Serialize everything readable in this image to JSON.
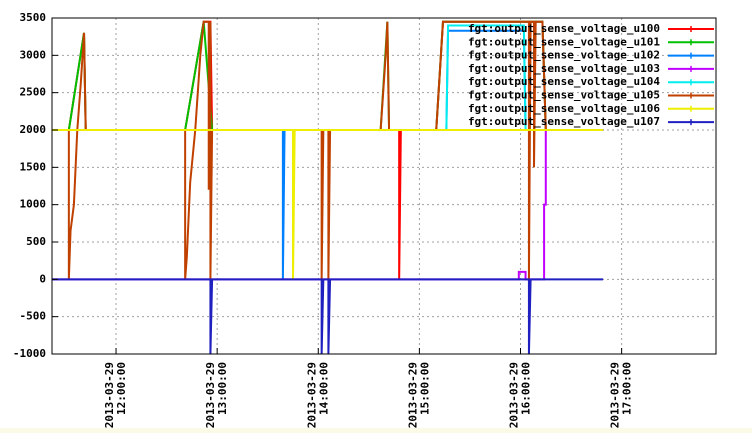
{
  "chart_data": {
    "type": "line",
    "ylim": [
      -1000,
      3500
    ],
    "yticks": [
      -1000,
      -500,
      0,
      500,
      1000,
      1500,
      2000,
      2500,
      3000,
      3500
    ],
    "xlim": [
      "2013-03-29 11:22:00",
      "2013-03-29 17:56:00"
    ],
    "xticks": [
      {
        "value": "2013-03-29 12:00:00",
        "label": "2013-03-29 12:00:00"
      },
      {
        "value": "2013-03-29 13:00:00",
        "label": "2013-03-29 13:00:00"
      },
      {
        "value": "2013-03-29 14:00:00",
        "label": "2013-03-29 14:00:00"
      },
      {
        "value": "2013-03-29 15:00:00",
        "label": "2013-03-29 15:00:00"
      },
      {
        "value": "2013-03-29 16:00:00",
        "label": "2013-03-29 16:00:00"
      },
      {
        "value": "2013-03-29 17:00:00",
        "label": "2013-03-29 17:00:00"
      }
    ],
    "grid": true,
    "legend": "top-right",
    "series": [
      {
        "name": "fgt:output_sense_voltage_u100",
        "color": "#ff0000",
        "x": [
          "2013-03-29 11:22:00",
          "2013-03-29 11:32:00",
          "2013-03-29 11:41:00",
          "2013-03-29 11:42:00",
          "2013-03-29 12:41:00",
          "2013-03-29 12:52:00",
          "2013-03-29 12:56:00",
          "2013-03-29 12:57:00",
          "2013-03-29 14:48:00",
          "2013-03-29 14:48:00",
          "2013-03-29 14:48:00",
          "2013-03-29 14:49:00",
          "2013-03-29 15:10:00",
          "2013-03-29 15:14:00",
          "2013-03-29 16:13:00",
          "2013-03-29 16:15:00",
          "2013-03-29 16:49:00"
        ],
        "values": [
          2000,
          2000,
          3300,
          2000,
          2000,
          3450,
          3450,
          2000,
          2000,
          1000,
          0,
          2000,
          2000,
          3450,
          3450,
          2000,
          2000
        ]
      },
      {
        "name": "fgt:output_sense_voltage_u101",
        "color": "#00c000",
        "x": [
          "2013-03-29 11:22:00",
          "2013-03-29 11:32:00",
          "2013-03-29 11:41:00",
          "2013-03-29 11:42:00",
          "2013-03-29 12:41:00",
          "2013-03-29 12:52:00",
          "2013-03-29 12:57:00",
          "2013-03-29 14:37:00",
          "2013-03-29 14:41:00",
          "2013-03-29 14:42:00",
          "2013-03-29 15:10:00",
          "2013-03-29 15:14:00",
          "2013-03-29 16:13:00",
          "2013-03-29 16:15:00",
          "2013-03-29 16:49:00"
        ],
        "values": [
          2000,
          2000,
          3300,
          2000,
          2000,
          3450,
          2000,
          2000,
          3450,
          2000,
          2000,
          3450,
          3450,
          2000,
          2000
        ]
      },
      {
        "name": "fgt:output_sense_voltage_u102",
        "color": "#0080ff",
        "x": [
          "2013-03-29 11:22:00",
          "2013-03-29 13:39:00",
          "2013-03-29 13:39:00",
          "2013-03-29 13:39:00",
          "2013-03-29 13:40:00",
          "2013-03-29 15:16:00",
          "2013-03-29 15:17:00",
          "2013-03-29 16:02:00",
          "2013-03-29 16:03:00",
          "2013-03-29 16:49:00"
        ],
        "values": [
          2000,
          2000,
          1000,
          0,
          2000,
          2000,
          3330,
          3330,
          2000,
          2000
        ]
      },
      {
        "name": "fgt:output_sense_voltage_u103",
        "color": "#c000ff",
        "x": [
          "2013-03-29 11:22:00",
          "2013-03-29 15:59:00",
          "2013-03-29 15:59:00",
          "2013-03-29 16:03:00",
          "2013-03-29 16:03:00",
          "2013-03-29 16:14:00",
          "2013-03-29 16:14:00",
          "2013-03-29 16:15:00",
          "2013-03-29 16:15:00",
          "2013-03-29 16:49:00"
        ],
        "values": [
          0,
          0,
          100,
          100,
          0,
          0,
          1000,
          1000,
          2000,
          2000
        ]
      },
      {
        "name": "fgt:output_sense_voltage_u104",
        "color": "#00eeee",
        "x": [
          "2013-03-29 11:22:00",
          "2013-03-29 15:16:00",
          "2013-03-29 15:17:00",
          "2013-03-29 16:02:00",
          "2013-03-29 16:03:00",
          "2013-03-29 16:49:00"
        ],
        "values": [
          2000,
          2000,
          3400,
          3400,
          2000,
          2000
        ]
      },
      {
        "name": "fgt:output_sense_voltage_u105",
        "color": "#c04000",
        "x": [
          "2013-03-29 11:22:00",
          "2013-03-29 11:32:00",
          "2013-03-29 11:32:00",
          "2013-03-29 11:33:00",
          "2013-03-29 11:35:00",
          "2013-03-29 11:37:00",
          "2013-03-29 11:39:00",
          "2013-03-29 11:41:00",
          "2013-03-29 11:42:00",
          "2013-03-29 12:41:00",
          "2013-03-29 12:41:00",
          "2013-03-29 12:42:00",
          "2013-03-29 12:44:00",
          "2013-03-29 12:47:00",
          "2013-03-29 12:50:00",
          "2013-03-29 12:52:00",
          "2013-03-29 12:55:00",
          "2013-03-29 12:55:00",
          "2013-03-29 12:56:00",
          "2013-03-29 12:56:00",
          "2013-03-29 12:57:00",
          "2013-03-29 14:02:00",
          "2013-03-29 14:02:00",
          "2013-03-29 14:03:00",
          "2013-03-29 14:06:00",
          "2013-03-29 14:06:00",
          "2013-03-29 14:07:00",
          "2013-03-29 14:37:00",
          "2013-03-29 14:40:00",
          "2013-03-29 14:41:00",
          "2013-03-29 14:42:00",
          "2013-03-29 15:10:00",
          "2013-03-29 15:14:00",
          "2013-03-29 16:05:00",
          "2013-03-29 16:05:00",
          "2013-03-29 16:06:00",
          "2013-03-29 16:08:00",
          "2013-03-29 16:08:00",
          "2013-03-29 16:09:00",
          "2013-03-29 16:13:00",
          "2013-03-29 16:15:00",
          "2013-03-29 16:49:00"
        ],
        "values": [
          2000,
          2000,
          0,
          650,
          1000,
          2000,
          2600,
          3300,
          2000,
          2000,
          0,
          300,
          1300,
          2000,
          3000,
          3450,
          3450,
          1200,
          3450,
          0,
          2000,
          2000,
          0,
          2000,
          2000,
          0,
          2000,
          2000,
          3000,
          3450,
          2000,
          2000,
          3450,
          3450,
          0,
          3450,
          3450,
          1500,
          3450,
          3450,
          2000,
          2000
        ]
      },
      {
        "name": "fgt:output_sense_voltage_u106",
        "color": "#eeee00",
        "x": [
          "2013-03-29 11:22:00",
          "2013-03-29 13:45:00",
          "2013-03-29 13:45:00",
          "2013-03-29 13:46:00",
          "2013-03-29 16:49:00"
        ],
        "values": [
          2000,
          2000,
          0,
          2000,
          2000
        ]
      },
      {
        "name": "fgt:output_sense_voltage_u107",
        "color": "#2020c0",
        "x": [
          "2013-03-29 11:22:00",
          "2013-03-29 12:56:00",
          "2013-03-29 12:56:00",
          "2013-03-29 12:57:00",
          "2013-03-29 14:02:00",
          "2013-03-29 14:02:00",
          "2013-03-29 14:03:00",
          "2013-03-29 14:06:00",
          "2013-03-29 14:06:00",
          "2013-03-29 14:07:00",
          "2013-03-29 16:05:00",
          "2013-03-29 16:05:00",
          "2013-03-29 16:06:00",
          "2013-03-29 16:49:00"
        ],
        "values": [
          0,
          0,
          -1000,
          0,
          0,
          -1000,
          0,
          0,
          -1000,
          0,
          0,
          -1000,
          0,
          0
        ]
      }
    ]
  }
}
